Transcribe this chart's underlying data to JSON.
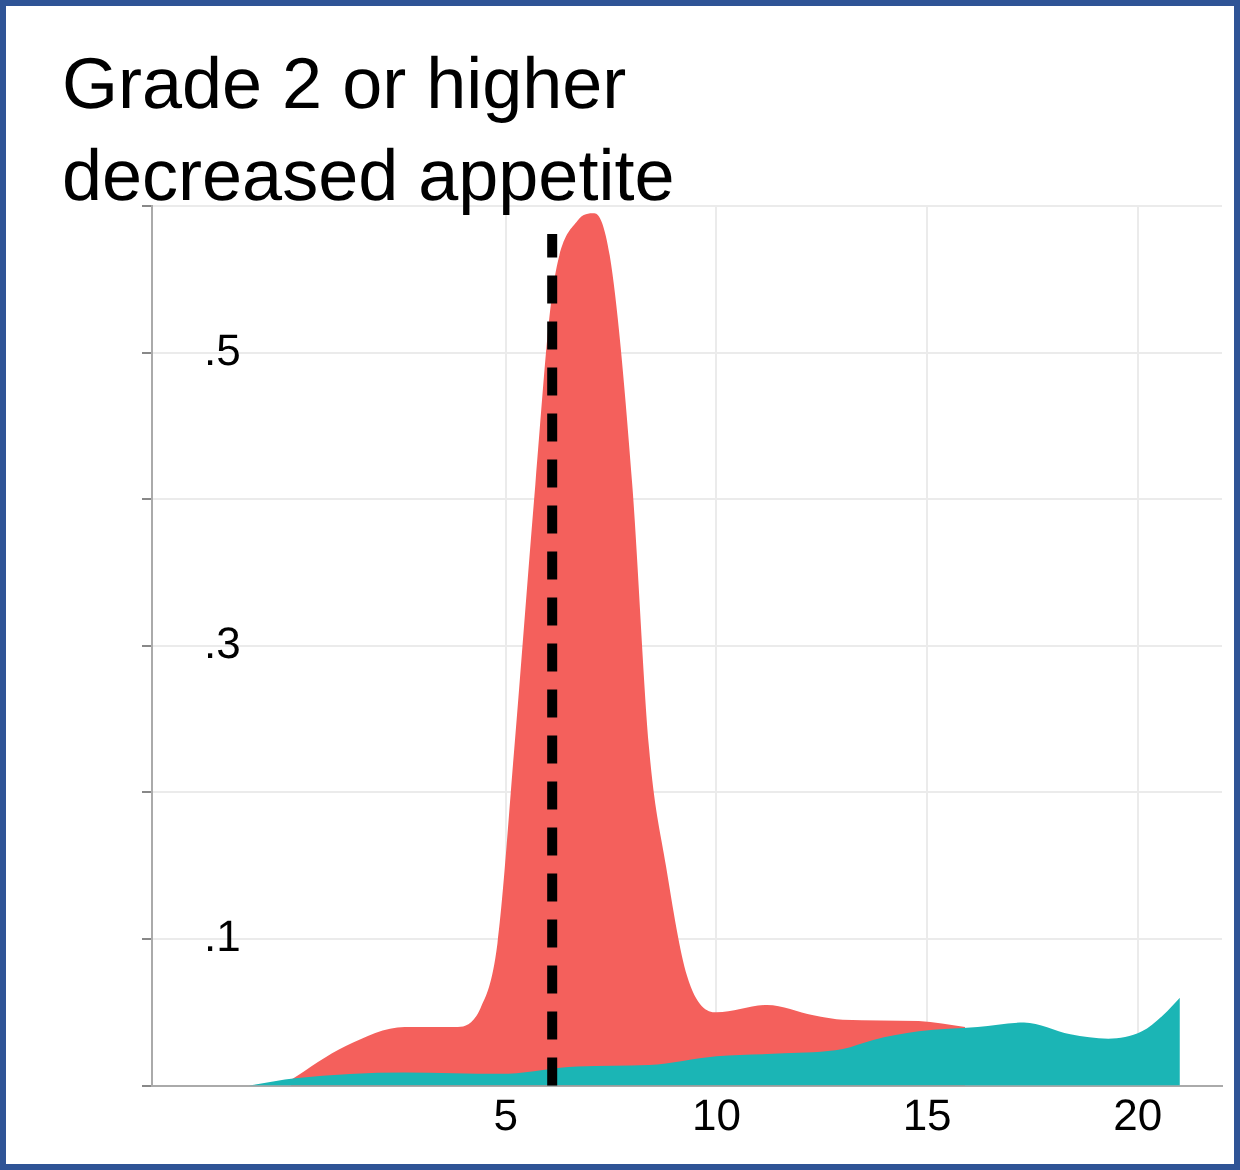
{
  "chart_data": {
    "type": "area",
    "title": "Grade 2 or higher decreased appetite",
    "xlim": [
      -3.4,
      22
    ],
    "xticks": [
      5,
      10,
      15,
      20
    ],
    "ylim": [
      0,
      0.6
    ],
    "yticks": [
      {
        "value": 0,
        "label": null
      },
      {
        "value": 0.1,
        "label": ".1"
      },
      {
        "value": 0.2,
        "label": null
      },
      {
        "value": 0.3,
        "label": ".3"
      },
      {
        "value": 0.4,
        "label": null
      },
      {
        "value": 0.5,
        "label": ".5"
      },
      {
        "value": 0.6,
        "label": null
      }
    ],
    "grid": true,
    "legend": false,
    "ref_lines": [
      {
        "axis": "x",
        "value": 6.1,
        "color": "#000000",
        "line_style": "dashed"
      }
    ],
    "series": [
      {
        "color": "#f4605c",
        "x": [
          -0.1,
          1.2,
          2.6,
          3.8,
          4.4,
          4.8,
          5.2,
          5.7,
          6.1,
          6.7,
          7.1,
          7.5,
          8.0,
          8.4,
          8.8,
          9.3,
          10.0,
          11.2,
          12.3,
          13.0,
          14.8,
          15.9
        ],
        "values": [
          0.004,
          0.027,
          0.04,
          0.04,
          0.053,
          0.097,
          0.23,
          0.41,
          0.54,
          0.59,
          0.595,
          0.56,
          0.41,
          0.23,
          0.15,
          0.075,
          0.05,
          0.055,
          0.048,
          0.045,
          0.044,
          0.04
        ]
      },
      {
        "color": "#1bb5b5",
        "x": [
          -1.1,
          0.0,
          2.6,
          4.9,
          6.7,
          8.4,
          10.0,
          11.6,
          13.0,
          13.7,
          14.8,
          16.2,
          17.3,
          18.4,
          19.3,
          20.1,
          20.6,
          21.0
        ],
        "values": [
          0,
          0.005,
          0.009,
          0.008,
          0.013,
          0.014,
          0.02,
          0.022,
          0.025,
          0.031,
          0.037,
          0.04,
          0.043,
          0.035,
          0.032,
          0.037,
          0.048,
          0.06
        ]
      }
    ]
  }
}
